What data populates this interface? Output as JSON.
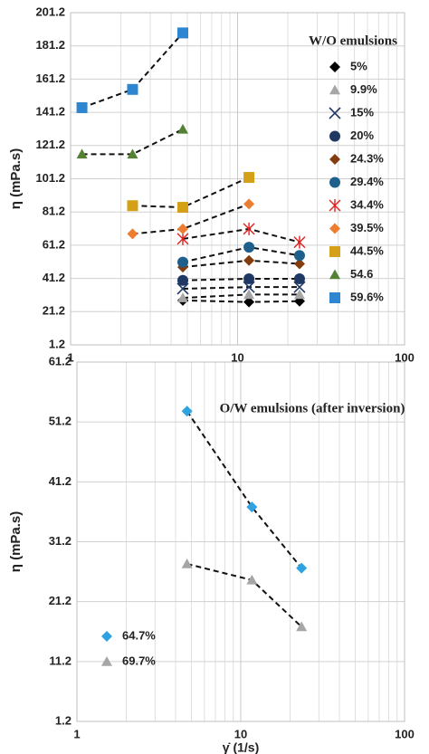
{
  "chart_data": [
    {
      "type": "scatter",
      "title": "W/O emulsions",
      "ylabel": "η (mPa.s)",
      "xscale": "log",
      "xlim": [
        1,
        100
      ],
      "xticks": [
        1,
        10,
        100
      ],
      "ylim": [
        1.2,
        201.2
      ],
      "yticks": [
        1.2,
        21.2,
        41.2,
        61.2,
        81.2,
        101.2,
        121.2,
        141.2,
        161.2,
        181.2,
        201.2
      ],
      "grid": true,
      "legend": "upper right",
      "trendline": "dashed",
      "series": [
        {
          "name": "5%",
          "color": "#000000",
          "marker": "diamond",
          "x": [
            4.7,
            11.7,
            23.5
          ],
          "values": [
            28,
            27,
            27.5
          ]
        },
        {
          "name": "9.9%",
          "color": "#a6a6a6",
          "marker": "triangle",
          "x": [
            4.7,
            11.7,
            23.5
          ],
          "values": [
            29.5,
            31.5,
            31.5
          ]
        },
        {
          "name": "15%",
          "color": "#1f3864",
          "marker": "x",
          "x": [
            4.7,
            11.7,
            23.5
          ],
          "values": [
            35,
            36,
            36
          ]
        },
        {
          "name": "20%",
          "color": "#1f3864",
          "marker": "circle",
          "x": [
            4.7,
            11.7,
            23.5
          ],
          "values": [
            40,
            41,
            41
          ]
        },
        {
          "name": "24.3%",
          "color": "#843c0c",
          "marker": "diamond",
          "x": [
            4.7,
            11.7,
            23.5
          ],
          "values": [
            48,
            52,
            50
          ]
        },
        {
          "name": "29.4%",
          "color": "#1f5f8b",
          "marker": "circle",
          "x": [
            4.7,
            11.7,
            23.5
          ],
          "values": [
            51,
            60,
            55
          ]
        },
        {
          "name": "34.4%",
          "color": "#e02020",
          "marker": "asterisk",
          "x": [
            4.7,
            11.7,
            23.5
          ],
          "values": [
            65,
            71,
            63
          ]
        },
        {
          "name": "39.5%",
          "color": "#ed7d31",
          "marker": "diamond",
          "x": [
            2.35,
            4.7,
            11.7
          ],
          "values": [
            68,
            71,
            86
          ]
        },
        {
          "name": "44.5%",
          "color": "#d4a017",
          "marker": "square",
          "x": [
            2.35,
            4.7,
            11.7
          ],
          "values": [
            85,
            84,
            102
          ]
        },
        {
          "name": "54.6",
          "color": "#548235",
          "marker": "triangle",
          "x": [
            1.17,
            2.35,
            4.7
          ],
          "values": [
            116,
            116,
            131
          ]
        },
        {
          "name": "59.6%",
          "color": "#2e86d0",
          "marker": "square",
          "x": [
            1.17,
            2.35,
            4.7
          ],
          "values": [
            144,
            155,
            189
          ]
        }
      ]
    },
    {
      "type": "scatter",
      "title": "O/W emulsions (after inversion)",
      "ylabel": "η (mPa.s)",
      "xlabel": "γ̇ (1/s)",
      "xscale": "log",
      "xlim": [
        1,
        100
      ],
      "xticks": [
        1,
        10,
        100
      ],
      "ylim": [
        1.2,
        61.2
      ],
      "yticks": [
        1.2,
        11.2,
        21.2,
        31.2,
        41.2,
        51.2,
        61.2
      ],
      "grid": true,
      "legend": "lower left",
      "trendline": "dashed",
      "series": [
        {
          "name": "64.7%",
          "color": "#2ea3e0",
          "marker": "diamond",
          "x": [
            4.7,
            11.7,
            23.5
          ],
          "values": [
            53,
            37,
            26.8
          ]
        },
        {
          "name": "69.7%",
          "color": "#a6a6a6",
          "marker": "triangle",
          "x": [
            4.7,
            11.7,
            23.5
          ],
          "values": [
            27.5,
            24.8,
            17
          ]
        }
      ]
    }
  ]
}
